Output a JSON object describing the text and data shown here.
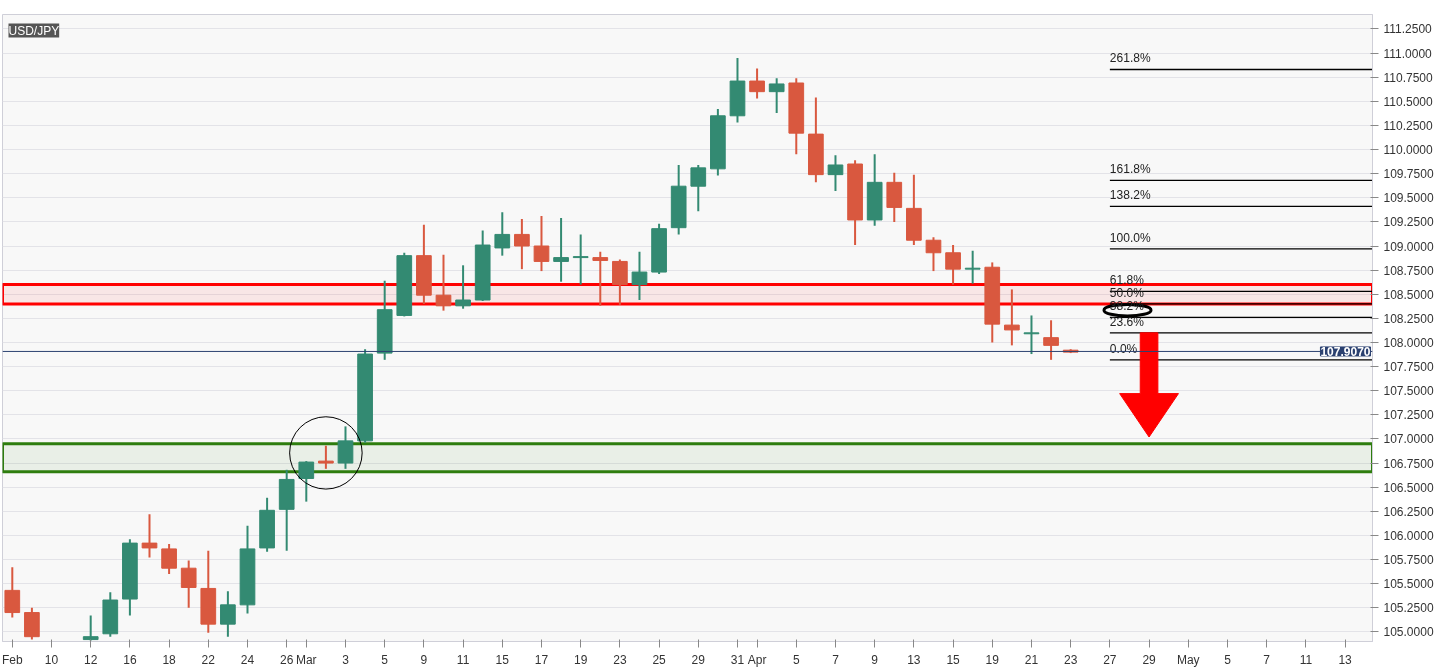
{
  "chart_data": {
    "type": "candlestick",
    "title": "USD/JPY",
    "categories": [
      "Feb",
      null,
      "10",
      null,
      "12",
      null,
      "16",
      null,
      "18",
      null,
      "22",
      null,
      "24",
      null,
      "26",
      "Mar",
      null,
      "3",
      null,
      "5",
      null,
      "9",
      null,
      "11",
      null,
      "15",
      null,
      "17",
      null,
      "19",
      null,
      "23",
      null,
      "25",
      null,
      "29",
      null,
      "31",
      "Apr",
      null,
      "5",
      null,
      "7",
      null,
      "9",
      null,
      "13",
      null,
      "15",
      null,
      "19",
      null,
      "21",
      null,
      "23",
      null,
      "27",
      null,
      "29",
      null,
      "May",
      null,
      "5",
      null,
      "7",
      null,
      "11",
      null,
      "13",
      null
    ],
    "ohlc": [
      [
        105.43,
        105.67,
        105.15,
        105.2
      ],
      [
        105.2,
        105.25,
        104.92,
        104.95
      ],
      null,
      null,
      [
        104.92,
        105.17,
        104.91,
        104.95
      ],
      [
        104.98,
        105.41,
        104.95,
        105.33
      ],
      [
        105.34,
        105.96,
        105.17,
        105.92
      ],
      [
        105.92,
        106.22,
        105.77,
        105.87
      ],
      [
        105.86,
        105.91,
        105.6,
        105.66
      ],
      [
        105.66,
        105.74,
        105.25,
        105.46
      ],
      [
        105.45,
        105.84,
        104.99,
        105.08
      ],
      [
        105.08,
        105.42,
        104.95,
        105.28
      ],
      [
        105.28,
        106.1,
        105.19,
        105.86
      ],
      [
        105.87,
        106.39,
        105.83,
        106.26
      ],
      [
        106.27,
        106.68,
        105.84,
        106.58
      ],
      [
        106.59,
        106.77,
        106.35,
        106.76
      ],
      [
        106.77,
        106.93,
        106.69,
        106.75
      ],
      [
        106.75,
        107.13,
        106.69,
        106.98
      ],
      [
        106.98,
        107.93,
        106.96,
        107.88
      ],
      [
        107.89,
        108.64,
        107.82,
        108.34
      ],
      [
        108.28,
        108.93,
        108.27,
        108.9
      ],
      [
        108.9,
        109.22,
        108.4,
        108.49
      ],
      [
        108.49,
        108.91,
        108.33,
        108.38
      ],
      [
        108.38,
        108.8,
        108.35,
        108.44
      ],
      [
        108.44,
        109.16,
        108.43,
        109.01
      ],
      [
        108.98,
        109.35,
        108.9,
        109.12
      ],
      [
        109.12,
        109.28,
        108.76,
        109.0
      ],
      [
        109.0,
        109.31,
        108.74,
        108.84
      ],
      [
        108.84,
        109.29,
        108.63,
        108.88
      ],
      [
        108.88,
        109.12,
        108.6,
        108.89
      ],
      [
        108.88,
        108.94,
        108.38,
        108.85
      ],
      [
        108.84,
        108.86,
        108.39,
        108.6
      ],
      [
        108.6,
        108.94,
        108.44,
        108.73
      ],
      [
        108.73,
        109.23,
        108.71,
        109.18
      ],
      [
        109.19,
        109.84,
        109.12,
        109.62
      ],
      [
        109.62,
        109.84,
        109.36,
        109.81
      ],
      [
        109.8,
        110.42,
        109.73,
        110.35
      ],
      [
        110.35,
        110.95,
        110.28,
        110.71
      ],
      [
        110.71,
        110.84,
        110.53,
        110.6
      ],
      [
        110.6,
        110.74,
        110.38,
        110.68
      ],
      [
        110.69,
        110.74,
        109.95,
        110.17
      ],
      [
        110.16,
        110.54,
        109.66,
        109.74
      ],
      [
        109.74,
        109.94,
        109.57,
        109.84
      ],
      [
        109.85,
        109.89,
        109.01,
        109.27
      ],
      [
        109.27,
        109.95,
        109.21,
        109.66
      ],
      [
        109.66,
        109.76,
        109.25,
        109.4
      ],
      [
        109.39,
        109.74,
        109.01,
        109.06
      ],
      [
        109.06,
        109.09,
        108.74,
        108.93
      ],
      [
        108.93,
        109.01,
        108.6,
        108.76
      ],
      [
        108.76,
        108.95,
        108.61,
        108.77
      ],
      [
        108.78,
        108.83,
        108.0,
        108.19
      ],
      [
        108.18,
        108.55,
        107.97,
        108.13
      ],
      [
        108.09,
        108.28,
        107.88,
        108.1
      ],
      [
        108.05,
        108.23,
        107.82,
        107.97
      ],
      [
        107.92,
        107.93,
        107.89,
        107.9
      ],
      null,
      null,
      null,
      null,
      null,
      null,
      null,
      null,
      null,
      null,
      null,
      null,
      null,
      null,
      null
    ],
    "colors": [
      "#d9583f",
      "#d9583f",
      null,
      null,
      "#338a72",
      "#338a72",
      "#338a72",
      "#d9583f",
      "#d9583f",
      "#d9583f",
      "#d9583f",
      "#338a72",
      "#338a72",
      "#338a72",
      "#338a72",
      "#338a72",
      "#d9583f",
      "#338a72",
      "#338a72",
      "#338a72",
      "#338a72",
      "#d9583f",
      "#d9583f",
      "#338a72",
      "#338a72",
      "#338a72",
      "#d9583f",
      "#d9583f",
      "#338a72",
      "#338a72",
      "#d9583f",
      "#d9583f",
      "#338a72",
      "#338a72",
      "#338a72",
      "#338a72",
      "#338a72",
      "#338a72",
      "#d9583f",
      "#338a72",
      "#d9583f",
      "#d9583f",
      "#338a72",
      "#d9583f",
      "#338a72",
      "#d9583f",
      "#d9583f",
      "#d9583f",
      "#d9583f",
      "#338a72",
      "#d9583f",
      "#d9583f",
      "#338a72",
      "#d9583f",
      "#d9583f",
      null,
      null,
      null,
      null,
      null,
      null,
      null,
      null,
      null,
      null,
      null,
      null,
      null,
      null,
      null
    ],
    "ylim": [
      104.9,
      111.4
    ],
    "yticks": [
      {
        "value": 105,
        "label": "105.0000"
      },
      {
        "value": 105.25,
        "label": "105.2500"
      },
      {
        "value": 105.5,
        "label": "105.5000"
      },
      {
        "value": 105.75,
        "label": "105.7500"
      },
      {
        "value": 106,
        "label": "106.0000"
      },
      {
        "value": 106.25,
        "label": "106.2500"
      },
      {
        "value": 106.5,
        "label": "106.5000"
      },
      {
        "value": 106.75,
        "label": "106.7500"
      },
      {
        "value": 107,
        "label": "107.0000"
      },
      {
        "value": 107.25,
        "label": "107.2500"
      },
      {
        "value": 107.5,
        "label": "107.5000"
      },
      {
        "value": 107.75,
        "label": "107.7500"
      },
      {
        "value": 108,
        "label": "108.0000"
      },
      {
        "value": 108.25,
        "label": "108.2500"
      },
      {
        "value": 108.5,
        "label": "108.5000"
      },
      {
        "value": 108.75,
        "label": "108.7500"
      },
      {
        "value": 109,
        "label": "109.0000"
      },
      {
        "value": 109.25,
        "label": "109.2500"
      },
      {
        "value": 109.5,
        "label": "109.5000"
      },
      {
        "value": 109.75,
        "label": "109.7500"
      },
      {
        "value": 110,
        "label": "110.0000"
      },
      {
        "value": 110.25,
        "label": "110.2500"
      },
      {
        "value": 110.5,
        "label": "110.5000"
      },
      {
        "value": 110.75,
        "label": "110.7500"
      },
      {
        "value": 111,
        "label": "111.0000"
      },
      {
        "value": 111.25,
        "label": "111.2500"
      }
    ],
    "annotations": [
      "261.8%",
      "161.8%",
      "138.2%",
      "100.0%",
      "61.8%",
      "50.0%",
      "38.2%",
      "23.6%",
      "0.0%"
    ],
    "ref_lines": [
      {
        "axis": "y",
        "value": 110.83,
        "color": "#000000"
      },
      {
        "axis": "y",
        "value": 109.68,
        "color": "#000000"
      },
      {
        "axis": "y",
        "value": 109.41,
        "color": "#000000"
      },
      {
        "axis": "y",
        "value": 108.97,
        "color": "#000000"
      },
      {
        "axis": "y",
        "value": 108.53,
        "color": "#000000"
      },
      {
        "axis": "y",
        "value": 108.4,
        "color": "#000000"
      },
      {
        "axis": "y",
        "value": 108.26,
        "color": "#000000"
      },
      {
        "axis": "y",
        "value": 108.1,
        "color": "#000000"
      },
      {
        "axis": "y",
        "value": 107.82,
        "color": "#000000"
      },
      {
        "axis": "y",
        "value": 107.907,
        "label": "107.9070",
        "color": "#2b4170"
      }
    ],
    "bands": [
      {
        "axis": "y",
        "from": 108.4,
        "to": 108.6,
        "color": "#ff0000"
      },
      {
        "axis": "y",
        "from": 106.66,
        "to": 106.95,
        "color": "#2e7d0e"
      }
    ],
    "grid": "y"
  }
}
